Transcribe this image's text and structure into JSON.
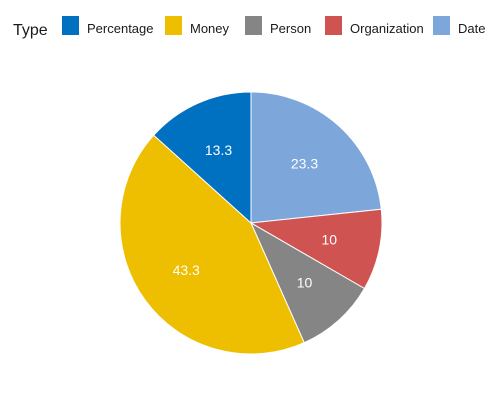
{
  "chart_data": {
    "type": "pie",
    "legend": {
      "title": "Type",
      "placement": "top"
    },
    "slices": [
      {
        "name": "Percentage",
        "value": 13.3,
        "label": "13.3",
        "color": "#0070c0"
      },
      {
        "name": "Money",
        "value": 43.3,
        "label": "43.3",
        "color": "#eebf00"
      },
      {
        "name": "Person",
        "value": 10,
        "label": "10",
        "color": "#858585"
      },
      {
        "name": "Organization",
        "value": 10,
        "label": "10",
        "color": "#cf5451"
      },
      {
        "name": "Date",
        "value": 23.3,
        "label": "23.3",
        "color": "#7da6db"
      }
    ],
    "legend_order": [
      "Percentage",
      "Money",
      "Person",
      "Organization",
      "Date"
    ],
    "start": "12 o'clock",
    "direction": "counter-clockwise"
  }
}
